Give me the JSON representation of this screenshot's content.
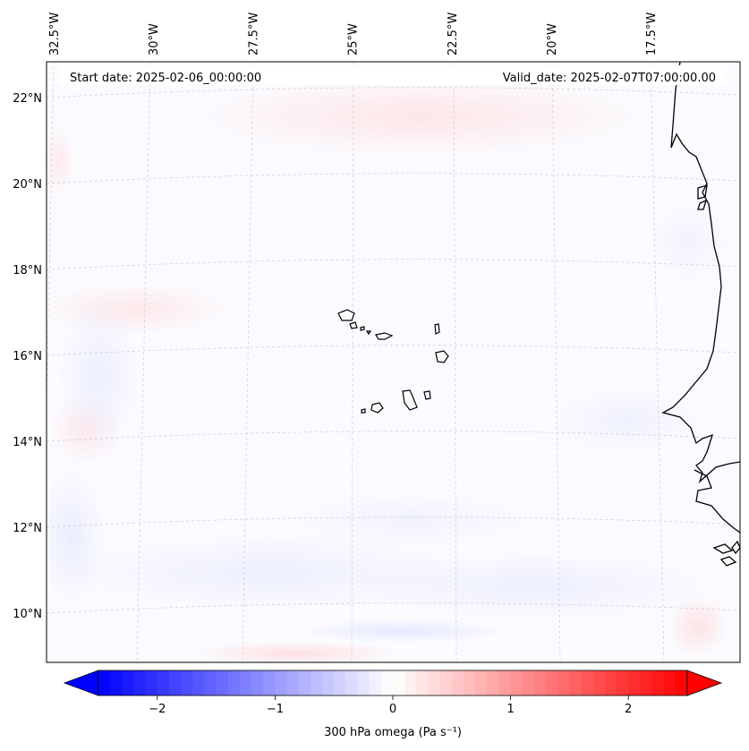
{
  "map": {
    "start_date_label": "Start date: 2025-02-06_00:00:00",
    "valid_date_label": "Valid_date: 2025-02-07T07:00:00.00",
    "lon_labels": [
      "32.5°W",
      "30°W",
      "27.5°W",
      "25°W",
      "22.5°W",
      "20°W",
      "17.5°W"
    ],
    "lat_labels": [
      "22°N",
      "20°N",
      "18°N",
      "16°N",
      "14°N",
      "12°N",
      "10°N"
    ],
    "lon_values": [
      -32.5,
      -30,
      -27.5,
      -25,
      -22.5,
      -20,
      -17.5
    ],
    "lat_values": [
      22,
      20,
      18,
      16,
      14,
      12,
      10
    ],
    "field": "300 hPa omega",
    "region": "Cabo Verde / West Africa coast"
  },
  "colorbar": {
    "label": "300 hPa omega (Pa s⁻¹)",
    "tick_labels": [
      "−2",
      "−1",
      "0",
      "1",
      "2"
    ],
    "tick_values": [
      -2,
      -1,
      0,
      1,
      2
    ],
    "vmin": -2.5,
    "vmax": 2.5,
    "extend": "both",
    "colormap": "bwr",
    "color_low": "#0000ff",
    "color_mid": "#ffffff",
    "color_high": "#ff0000"
  }
}
